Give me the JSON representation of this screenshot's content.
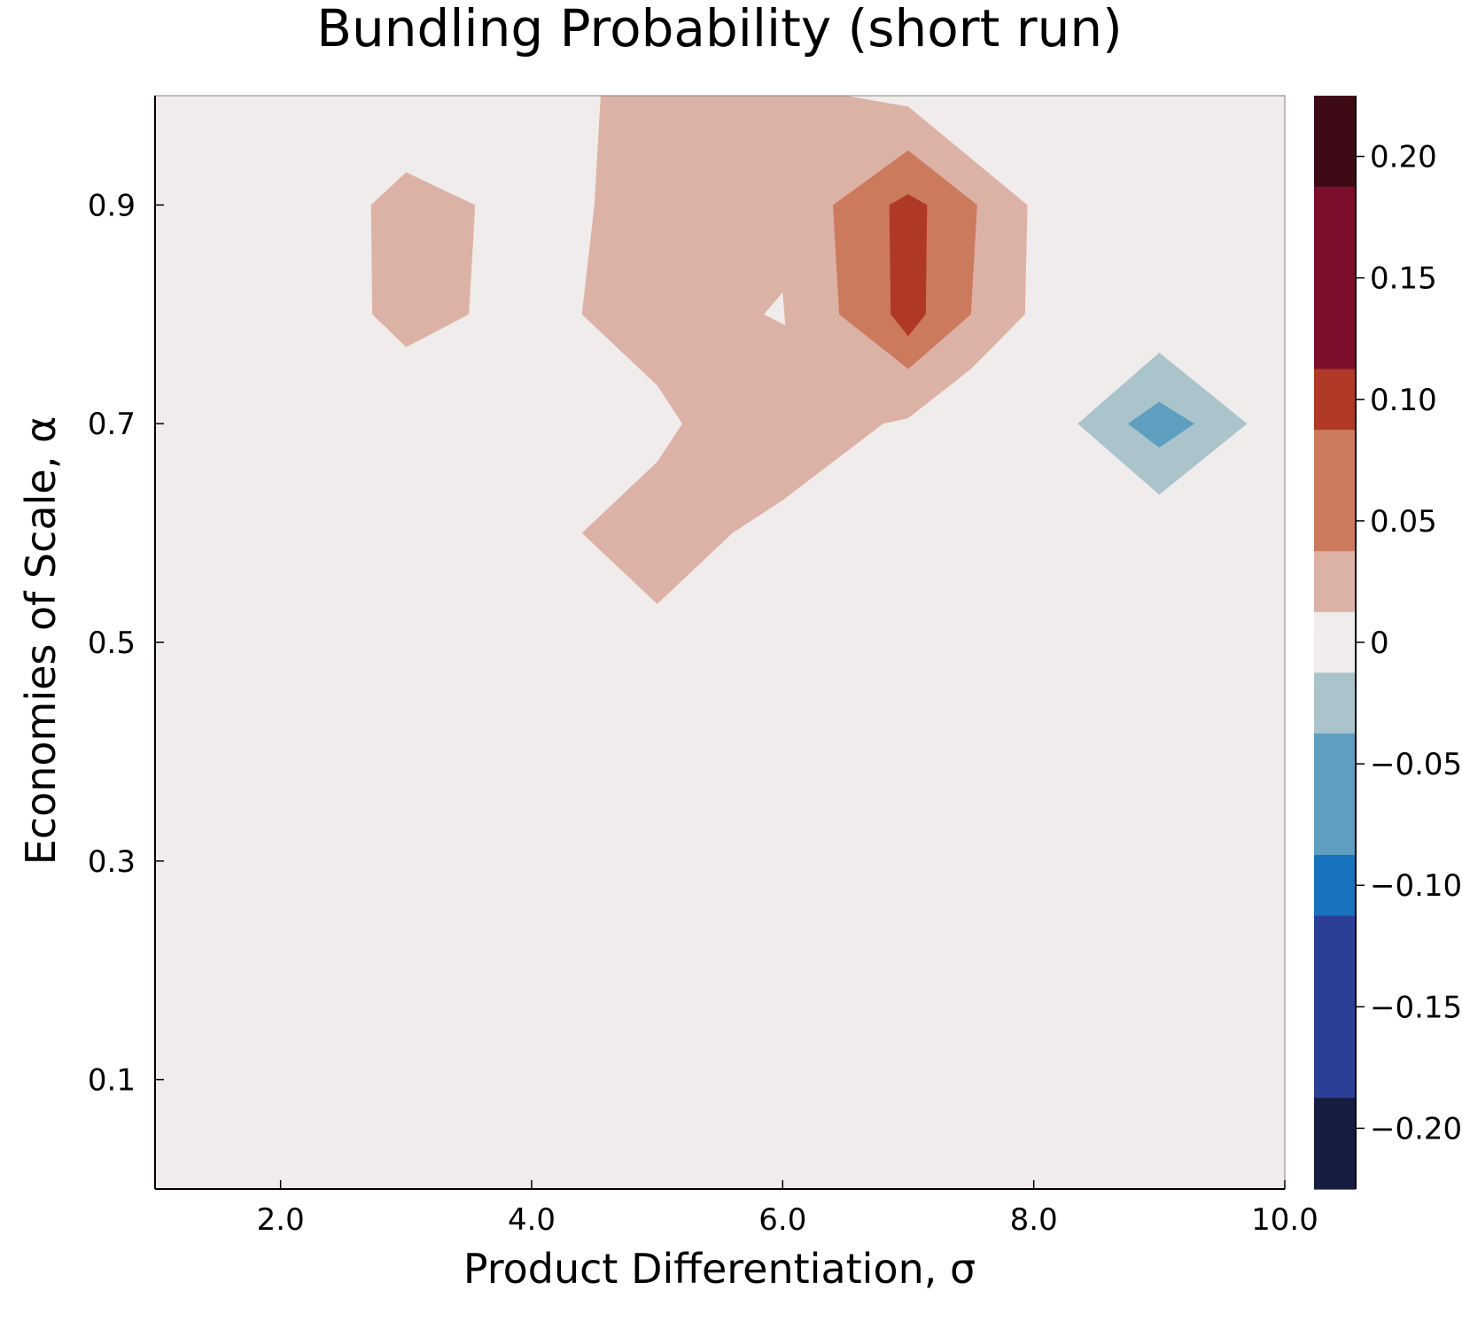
{
  "chart_data": {
    "type": "heatmap",
    "subtype": "filled-contour",
    "title": "Bundling Probability (short run)",
    "xlabel": "Product Differentiation, σ",
    "ylabel": "Economies of Scale, α",
    "xlim": [
      1.0,
      10.0
    ],
    "ylim": [
      0.0,
      1.0
    ],
    "x_ticks": [
      {
        "value": 2.0,
        "label": "2.0"
      },
      {
        "value": 4.0,
        "label": "4.0"
      },
      {
        "value": 6.0,
        "label": "6.0"
      },
      {
        "value": 8.0,
        "label": "8.0"
      },
      {
        "value": 10.0,
        "label": "10.0"
      }
    ],
    "y_ticks": [
      {
        "value": 0.1,
        "label": "0.1"
      },
      {
        "value": 0.3,
        "label": "0.3"
      },
      {
        "value": 0.5,
        "label": "0.5"
      },
      {
        "value": 0.7,
        "label": "0.7"
      },
      {
        "value": 0.9,
        "label": "0.9"
      }
    ],
    "colorbar": {
      "range": [
        -0.225,
        0.225
      ],
      "ticks": [
        {
          "value": 0.2,
          "label": "0.20"
        },
        {
          "value": 0.15,
          "label": "0.15"
        },
        {
          "value": 0.1,
          "label": "0.10"
        },
        {
          "value": 0.05,
          "label": "0.05"
        },
        {
          "value": 0,
          "label": "0"
        },
        {
          "value": -0.05,
          "label": "−0.05"
        },
        {
          "value": -0.1,
          "label": "−0.10"
        },
        {
          "value": -0.15,
          "label": "−0.15"
        },
        {
          "value": -0.2,
          "label": "−0.20"
        }
      ],
      "levels": [
        {
          "from": 0.1875,
          "to": 0.225,
          "color": "#3d0a16"
        },
        {
          "from": 0.1125,
          "to": 0.1875,
          "color": "#7d0e2b"
        },
        {
          "from": 0.0875,
          "to": 0.1125,
          "color": "#b03827"
        },
        {
          "from": 0.0375,
          "to": 0.0875,
          "color": "#cc7a5e"
        },
        {
          "from": 0.0125,
          "to": 0.0375,
          "color": "#ddb2a6"
        },
        {
          "from": -0.0125,
          "to": 0.0125,
          "color": "#f0ecec"
        },
        {
          "from": -0.0375,
          "to": -0.0125,
          "color": "#abc4cb"
        },
        {
          "from": -0.0875,
          "to": -0.0375,
          "color": "#5e9fbf"
        },
        {
          "from": -0.1125,
          "to": -0.0875,
          "color": "#1773bd"
        },
        {
          "from": -0.1875,
          "to": -0.1125,
          "color": "#2b3f97"
        },
        {
          "from": -0.225,
          "to": -0.1875,
          "color": "#171c41"
        }
      ]
    },
    "background_value": 0,
    "regions": [
      {
        "level": "0.0125–0.0375",
        "color": "#ddb2a6",
        "outline": [
          [
            2.72,
            0.9
          ],
          [
            3.0,
            0.93
          ],
          [
            3.55,
            0.9
          ],
          [
            3.5,
            0.8
          ],
          [
            3.0,
            0.77
          ],
          [
            2.73,
            0.8
          ]
        ]
      },
      {
        "level": "0.0125–0.0375",
        "color": "#ddb2a6",
        "outline": [
          [
            4.55,
            1.0
          ],
          [
            6.5,
            1.0
          ],
          [
            7.0,
            0.99
          ],
          [
            7.95,
            0.9
          ],
          [
            7.93,
            0.8
          ],
          [
            7.5,
            0.75
          ],
          [
            7.0,
            0.705
          ],
          [
            6.8,
            0.7
          ],
          [
            6.0,
            0.63
          ],
          [
            5.6,
            0.6
          ],
          [
            5.0,
            0.535
          ],
          [
            4.4,
            0.6
          ],
          [
            5.0,
            0.665
          ],
          [
            5.2,
            0.7
          ],
          [
            5.0,
            0.735
          ],
          [
            4.4,
            0.8
          ],
          [
            4.5,
            0.9
          ]
        ],
        "hole": [
          [
            5.85,
            0.8
          ],
          [
            6.0,
            0.82
          ],
          [
            6.02,
            0.79
          ]
        ]
      },
      {
        "level": "0.0375–0.0875",
        "color": "#cc7a5e",
        "outline": [
          [
            6.4,
            0.9
          ],
          [
            7.0,
            0.95
          ],
          [
            7.55,
            0.9
          ],
          [
            7.5,
            0.8
          ],
          [
            7.0,
            0.75
          ],
          [
            6.45,
            0.8
          ]
        ]
      },
      {
        "level": "0.0875–0.1125",
        "color": "#b03827",
        "outline": [
          [
            6.85,
            0.9
          ],
          [
            7.0,
            0.91
          ],
          [
            7.15,
            0.9
          ],
          [
            7.14,
            0.8
          ],
          [
            7.0,
            0.78
          ],
          [
            6.86,
            0.8
          ]
        ]
      },
      {
        "level": "-0.0375–-0.0125",
        "color": "#abc4cb",
        "outline": [
          [
            8.35,
            0.7
          ],
          [
            9.0,
            0.765
          ],
          [
            9.7,
            0.7
          ],
          [
            9.0,
            0.635
          ]
        ]
      },
      {
        "level": "-0.0875–-0.0375",
        "color": "#5e9fbf",
        "outline": [
          [
            8.75,
            0.7
          ],
          [
            9.0,
            0.72
          ],
          [
            9.28,
            0.7
          ],
          [
            9.0,
            0.678
          ]
        ]
      }
    ]
  }
}
